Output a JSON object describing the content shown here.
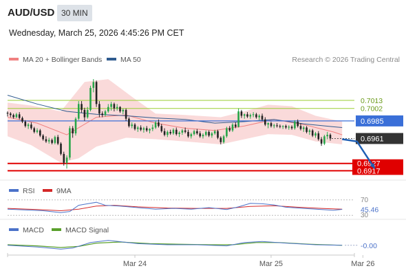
{
  "header": {
    "symbol": "AUD/USD",
    "timeframe": "30 MIN",
    "datetime": "Wednesday, March 25, 2026 4:45:26 PM CET"
  },
  "legend": {
    "ma20_bb": "MA 20 + Bollinger Bands",
    "ma50": "MA 50",
    "credit": "Research © 2026 Trading Central"
  },
  "colors": {
    "ma20": "#f08080",
    "ma50": "#2f5b8f",
    "bb_fill": "#fadada",
    "bull": "#26a548",
    "bear": "#222222",
    "resistance": "#9acd32",
    "pivot": "#3a6fd8",
    "support": "#e00000",
    "rsi": "#4b72c9",
    "rsi_ma": "#d42828",
    "macd": "#4b72c9",
    "macd_signal": "#5aa02c",
    "arrow": "#1f5fb4"
  },
  "chart_data": [
    {
      "type": "candlestick",
      "ylim": [
        0.6908,
        0.7058
      ],
      "x_ticks": [
        {
          "label": "Mar 24",
          "index": 43
        },
        {
          "label": "Mar 25",
          "index": 89
        },
        {
          "label": "Mar 26",
          "index": 120
        }
      ],
      "candles": [
        [
          0.6996,
          0.6998,
          0.6991,
          0.6995
        ],
        [
          0.6995,
          0.6997,
          0.699,
          0.6993
        ],
        [
          0.6993,
          0.6995,
          0.6988,
          0.699
        ],
        [
          0.699,
          0.6996,
          0.6989,
          0.6994
        ],
        [
          0.6994,
          0.6997,
          0.6987,
          0.6989
        ],
        [
          0.6989,
          0.6991,
          0.6982,
          0.6984
        ],
        [
          0.6984,
          0.6986,
          0.6976,
          0.6978
        ],
        [
          0.6978,
          0.6982,
          0.6974,
          0.698
        ],
        [
          0.698,
          0.6983,
          0.6973,
          0.6975
        ],
        [
          0.6975,
          0.6977,
          0.6968,
          0.697
        ],
        [
          0.697,
          0.6975,
          0.6968,
          0.6972
        ],
        [
          0.6972,
          0.6974,
          0.6963,
          0.6965
        ],
        [
          0.6965,
          0.6967,
          0.6958,
          0.696
        ],
        [
          0.696,
          0.6964,
          0.6955,
          0.6957
        ],
        [
          0.6957,
          0.6962,
          0.6954,
          0.6959
        ],
        [
          0.6959,
          0.6961,
          0.6953,
          0.6955
        ],
        [
          0.6955,
          0.6965,
          0.6953,
          0.6963
        ],
        [
          0.6963,
          0.6966,
          0.6952,
          0.6954
        ],
        [
          0.6954,
          0.6956,
          0.6938,
          0.694
        ],
        [
          0.694,
          0.6943,
          0.6924,
          0.6928
        ],
        [
          0.6928,
          0.6938,
          0.692,
          0.6935
        ],
        [
          0.6935,
          0.6978,
          0.6932,
          0.6975
        ],
        [
          0.6975,
          0.6978,
          0.6962,
          0.6968
        ],
        [
          0.6968,
          0.699,
          0.6965,
          0.6988
        ],
        [
          0.6988,
          0.7012,
          0.6986,
          0.7008
        ],
        [
          0.7008,
          0.7012,
          0.6996,
          0.7
        ],
        [
          0.7,
          0.7003,
          0.6985,
          0.699
        ],
        [
          0.699,
          0.7004,
          0.6988,
          0.7
        ],
        [
          0.7,
          0.7033,
          0.6998,
          0.703
        ],
        [
          0.703,
          0.7042,
          0.7024,
          0.7038
        ],
        [
          0.7038,
          0.704,
          0.7004,
          0.7008
        ],
        [
          0.7008,
          0.7012,
          0.699,
          0.6995
        ],
        [
          0.6995,
          0.6998,
          0.699,
          0.6993
        ],
        [
          0.6993,
          0.7,
          0.6991,
          0.6998
        ],
        [
          0.6998,
          0.7008,
          0.6996,
          0.7004
        ],
        [
          0.7004,
          0.7011,
          0.6999,
          0.7008
        ],
        [
          0.7008,
          0.701,
          0.6998,
          0.7002
        ],
        [
          0.7002,
          0.7008,
          0.6999,
          0.7004
        ],
        [
          0.7004,
          0.7005,
          0.6996,
          0.6998
        ],
        [
          0.6998,
          0.7002,
          0.6994,
          0.7
        ],
        [
          0.7,
          0.7002,
          0.6985,
          0.6988
        ],
        [
          0.6988,
          0.699,
          0.6976,
          0.6978
        ],
        [
          0.6978,
          0.6983,
          0.6975,
          0.698
        ],
        [
          0.698,
          0.6982,
          0.6972,
          0.6974
        ],
        [
          0.6974,
          0.6978,
          0.697,
          0.6976
        ],
        [
          0.6976,
          0.6979,
          0.6971,
          0.6973
        ],
        [
          0.6973,
          0.6977,
          0.6969,
          0.6975
        ],
        [
          0.6975,
          0.6978,
          0.697,
          0.6972
        ],
        [
          0.6972,
          0.6975,
          0.6968,
          0.6974
        ],
        [
          0.6974,
          0.698,
          0.6971,
          0.6976
        ],
        [
          0.6976,
          0.6985,
          0.6974,
          0.6983
        ],
        [
          0.6983,
          0.6987,
          0.6976,
          0.6978
        ],
        [
          0.6978,
          0.6981,
          0.6969,
          0.6971
        ],
        [
          0.6971,
          0.6975,
          0.6964,
          0.6966
        ],
        [
          0.6966,
          0.6972,
          0.6963,
          0.697
        ],
        [
          0.697,
          0.6973,
          0.6966,
          0.6968
        ],
        [
          0.6968,
          0.6975,
          0.6966,
          0.6973
        ],
        [
          0.6973,
          0.6976,
          0.6965,
          0.6967
        ],
        [
          0.6967,
          0.6971,
          0.6963,
          0.6969
        ],
        [
          0.6969,
          0.6974,
          0.6966,
          0.6972
        ],
        [
          0.6972,
          0.6976,
          0.6968,
          0.697
        ],
        [
          0.697,
          0.6973,
          0.6962,
          0.6964
        ],
        [
          0.6964,
          0.6969,
          0.6961,
          0.6967
        ],
        [
          0.6967,
          0.6973,
          0.6965,
          0.6971
        ],
        [
          0.6971,
          0.6974,
          0.6966,
          0.6968
        ],
        [
          0.6968,
          0.6971,
          0.6962,
          0.6964
        ],
        [
          0.6964,
          0.6968,
          0.6961,
          0.6966
        ],
        [
          0.6966,
          0.6972,
          0.6964,
          0.697
        ],
        [
          0.697,
          0.6972,
          0.6963,
          0.6965
        ],
        [
          0.6965,
          0.697,
          0.6962,
          0.6968
        ],
        [
          0.6968,
          0.6973,
          0.6966,
          0.6971
        ],
        [
          0.6971,
          0.6973,
          0.696,
          0.6962
        ],
        [
          0.6962,
          0.6964,
          0.6953,
          0.6956
        ],
        [
          0.6956,
          0.6966,
          0.6954,
          0.6964
        ],
        [
          0.6964,
          0.6977,
          0.6962,
          0.6975
        ],
        [
          0.6975,
          0.6978,
          0.697,
          0.6972
        ],
        [
          0.6972,
          0.6982,
          0.697,
          0.698
        ],
        [
          0.698,
          0.6983,
          0.6975,
          0.6977
        ],
        [
          0.6977,
          0.7002,
          0.6976,
          0.6998
        ],
        [
          0.6998,
          0.7,
          0.6989,
          0.6992
        ],
        [
          0.6992,
          0.6995,
          0.6988,
          0.6994
        ],
        [
          0.6994,
          0.6997,
          0.6989,
          0.6991
        ],
        [
          0.6991,
          0.6995,
          0.6988,
          0.6993
        ],
        [
          0.6993,
          0.6997,
          0.699,
          0.6994
        ],
        [
          0.6994,
          0.6996,
          0.6988,
          0.699
        ],
        [
          0.699,
          0.6994,
          0.6986,
          0.6992
        ],
        [
          0.6992,
          0.6995,
          0.6985,
          0.6987
        ],
        [
          0.6987,
          0.699,
          0.6978,
          0.698
        ],
        [
          0.698,
          0.6983,
          0.6975,
          0.6982
        ],
        [
          0.6982,
          0.6984,
          0.6976,
          0.6978
        ],
        [
          0.6978,
          0.6981,
          0.6975,
          0.6979
        ],
        [
          0.6979,
          0.6982,
          0.6976,
          0.6978
        ],
        [
          0.6978,
          0.698,
          0.6975,
          0.6977
        ],
        [
          0.6977,
          0.6979,
          0.6974,
          0.6978
        ],
        [
          0.6978,
          0.698,
          0.6974,
          0.6976
        ],
        [
          0.6976,
          0.6979,
          0.6973,
          0.6977
        ],
        [
          0.6977,
          0.6979,
          0.6973,
          0.6975
        ],
        [
          0.6975,
          0.6986,
          0.6973,
          0.6984
        ],
        [
          0.6984,
          0.6987,
          0.6976,
          0.6978
        ],
        [
          0.6978,
          0.6982,
          0.6972,
          0.6974
        ],
        [
          0.6974,
          0.6978,
          0.697,
          0.6976
        ],
        [
          0.6976,
          0.6978,
          0.6968,
          0.697
        ],
        [
          0.697,
          0.6974,
          0.6966,
          0.6972
        ],
        [
          0.6972,
          0.6974,
          0.6963,
          0.6965
        ],
        [
          0.6965,
          0.697,
          0.6962,
          0.6968
        ],
        [
          0.6968,
          0.6971,
          0.6958,
          0.696
        ],
        [
          0.696,
          0.6963,
          0.6951,
          0.6954
        ],
        [
          0.6954,
          0.6966,
          0.6952,
          0.6964
        ],
        [
          0.6964,
          0.697,
          0.696,
          0.6966
        ],
        [
          0.6966,
          0.6968,
          0.6958,
          0.6961
        ]
      ],
      "ma20": [
        [
          0,
          0.699
        ],
        [
          10,
          0.6982
        ],
        [
          20,
          0.6966
        ],
        [
          30,
          0.699
        ],
        [
          40,
          0.6993
        ],
        [
          50,
          0.6982
        ],
        [
          60,
          0.6975
        ],
        [
          70,
          0.6972
        ],
        [
          80,
          0.6978
        ],
        [
          90,
          0.6987
        ],
        [
          100,
          0.698
        ],
        [
          110,
          0.697
        ],
        [
          113,
          0.6966
        ]
      ],
      "ma50": [
        [
          0,
          0.702
        ],
        [
          10,
          0.7008
        ],
        [
          20,
          0.6998
        ],
        [
          30,
          0.6994
        ],
        [
          40,
          0.6992
        ],
        [
          50,
          0.6989
        ],
        [
          60,
          0.6987
        ],
        [
          70,
          0.6982
        ],
        [
          80,
          0.6984
        ],
        [
          90,
          0.6987
        ],
        [
          100,
          0.6981
        ],
        [
          110,
          0.6977
        ],
        [
          113,
          0.6976
        ]
      ],
      "bb_upper": [
        [
          0,
          0.701
        ],
        [
          8,
          0.7006
        ],
        [
          18,
          0.6998
        ],
        [
          26,
          0.7038
        ],
        [
          34,
          0.7042
        ],
        [
          42,
          0.7018
        ],
        [
          50,
          0.6995
        ],
        [
          60,
          0.6993
        ],
        [
          72,
          0.699
        ],
        [
          80,
          0.6998
        ],
        [
          88,
          0.7007
        ],
        [
          96,
          0.7005
        ],
        [
          104,
          0.6992
        ],
        [
          113,
          0.6984
        ]
      ],
      "bb_lower": [
        [
          0,
          0.6964
        ],
        [
          8,
          0.6952
        ],
        [
          18,
          0.6928
        ],
        [
          24,
          0.6934
        ],
        [
          30,
          0.695
        ],
        [
          40,
          0.6962
        ],
        [
          50,
          0.696
        ],
        [
          60,
          0.6957
        ],
        [
          72,
          0.6953
        ],
        [
          80,
          0.696
        ],
        [
          88,
          0.6967
        ],
        [
          96,
          0.6966
        ],
        [
          104,
          0.6957
        ],
        [
          113,
          0.6953
        ]
      ],
      "levels": [
        {
          "label": "0.7013",
          "value": 0.7013,
          "role": "resistance"
        },
        {
          "label": "0.7002",
          "value": 0.7002,
          "role": "resistance"
        },
        {
          "label": "0.6985",
          "value": 0.6985,
          "role": "pivot"
        },
        {
          "label": "0.6961",
          "value": 0.6961,
          "role": "last"
        },
        {
          "label": "0.6927",
          "value": 0.6927,
          "role": "support"
        },
        {
          "label": "0.6917",
          "value": 0.6917,
          "role": "support"
        }
      ],
      "arrow": {
        "from": [
          113,
          0.696
        ],
        "via": [
          118,
          0.6957
        ],
        "to": [
          124,
          0.692
        ]
      }
    },
    {
      "type": "line",
      "name": "rsi-panel",
      "legend": [
        "RSI",
        "9MA"
      ],
      "ylim": [
        25,
        75
      ],
      "ref_lines": [
        {
          "label": "70",
          "value": 70
        },
        {
          "label": "30",
          "value": 30
        }
      ],
      "last_label": "45.46",
      "rsi": [
        [
          0,
          46
        ],
        [
          6,
          44
        ],
        [
          12,
          42
        ],
        [
          18,
          37
        ],
        [
          21,
          40
        ],
        [
          24,
          56
        ],
        [
          27,
          60
        ],
        [
          30,
          64
        ],
        [
          33,
          56
        ],
        [
          38,
          54
        ],
        [
          44,
          50
        ],
        [
          50,
          46
        ],
        [
          56,
          48
        ],
        [
          62,
          46
        ],
        [
          68,
          50
        ],
        [
          74,
          45
        ],
        [
          78,
          52
        ],
        [
          82,
          61
        ],
        [
          86,
          60
        ],
        [
          90,
          57
        ],
        [
          94,
          51
        ],
        [
          100,
          48
        ],
        [
          106,
          45
        ],
        [
          110,
          43
        ],
        [
          113,
          45.46
        ]
      ],
      "rsi_ma": [
        [
          0,
          48
        ],
        [
          10,
          45
        ],
        [
          18,
          42
        ],
        [
          24,
          46
        ],
        [
          30,
          54
        ],
        [
          36,
          56
        ],
        [
          44,
          52
        ],
        [
          54,
          49
        ],
        [
          64,
          48
        ],
        [
          74,
          48
        ],
        [
          82,
          53
        ],
        [
          90,
          55
        ],
        [
          98,
          51
        ],
        [
          106,
          48
        ],
        [
          113,
          46
        ]
      ]
    },
    {
      "type": "line",
      "name": "macd-panel",
      "legend": [
        "MACD",
        "MACD Signal"
      ],
      "ylim": [
        -0.0015,
        0.0015
      ],
      "last_label": "-0.00",
      "macd": [
        [
          0,
          -0.0001
        ],
        [
          10,
          -0.0004
        ],
        [
          18,
          -0.0008
        ],
        [
          22,
          -0.0006
        ],
        [
          28,
          0.0004
        ],
        [
          34,
          0.0008
        ],
        [
          44,
          0.0002
        ],
        [
          54,
          0.0
        ],
        [
          64,
          0.0
        ],
        [
          74,
          -0.0002
        ],
        [
          80,
          0.0004
        ],
        [
          86,
          0.0006
        ],
        [
          94,
          0.0003
        ],
        [
          104,
          0.0
        ],
        [
          113,
          -0.0001
        ]
      ],
      "macd_signal": [
        [
          0,
          0.0
        ],
        [
          10,
          -0.0002
        ],
        [
          18,
          -0.0005
        ],
        [
          24,
          -0.0003
        ],
        [
          30,
          0.0003
        ],
        [
          38,
          0.0005
        ],
        [
          48,
          0.0002
        ],
        [
          58,
          0.0001
        ],
        [
          68,
          0.0
        ],
        [
          76,
          0.0
        ],
        [
          84,
          0.0004
        ],
        [
          92,
          0.0004
        ],
        [
          102,
          0.0001
        ],
        [
          113,
          -0.0001
        ]
      ]
    }
  ]
}
